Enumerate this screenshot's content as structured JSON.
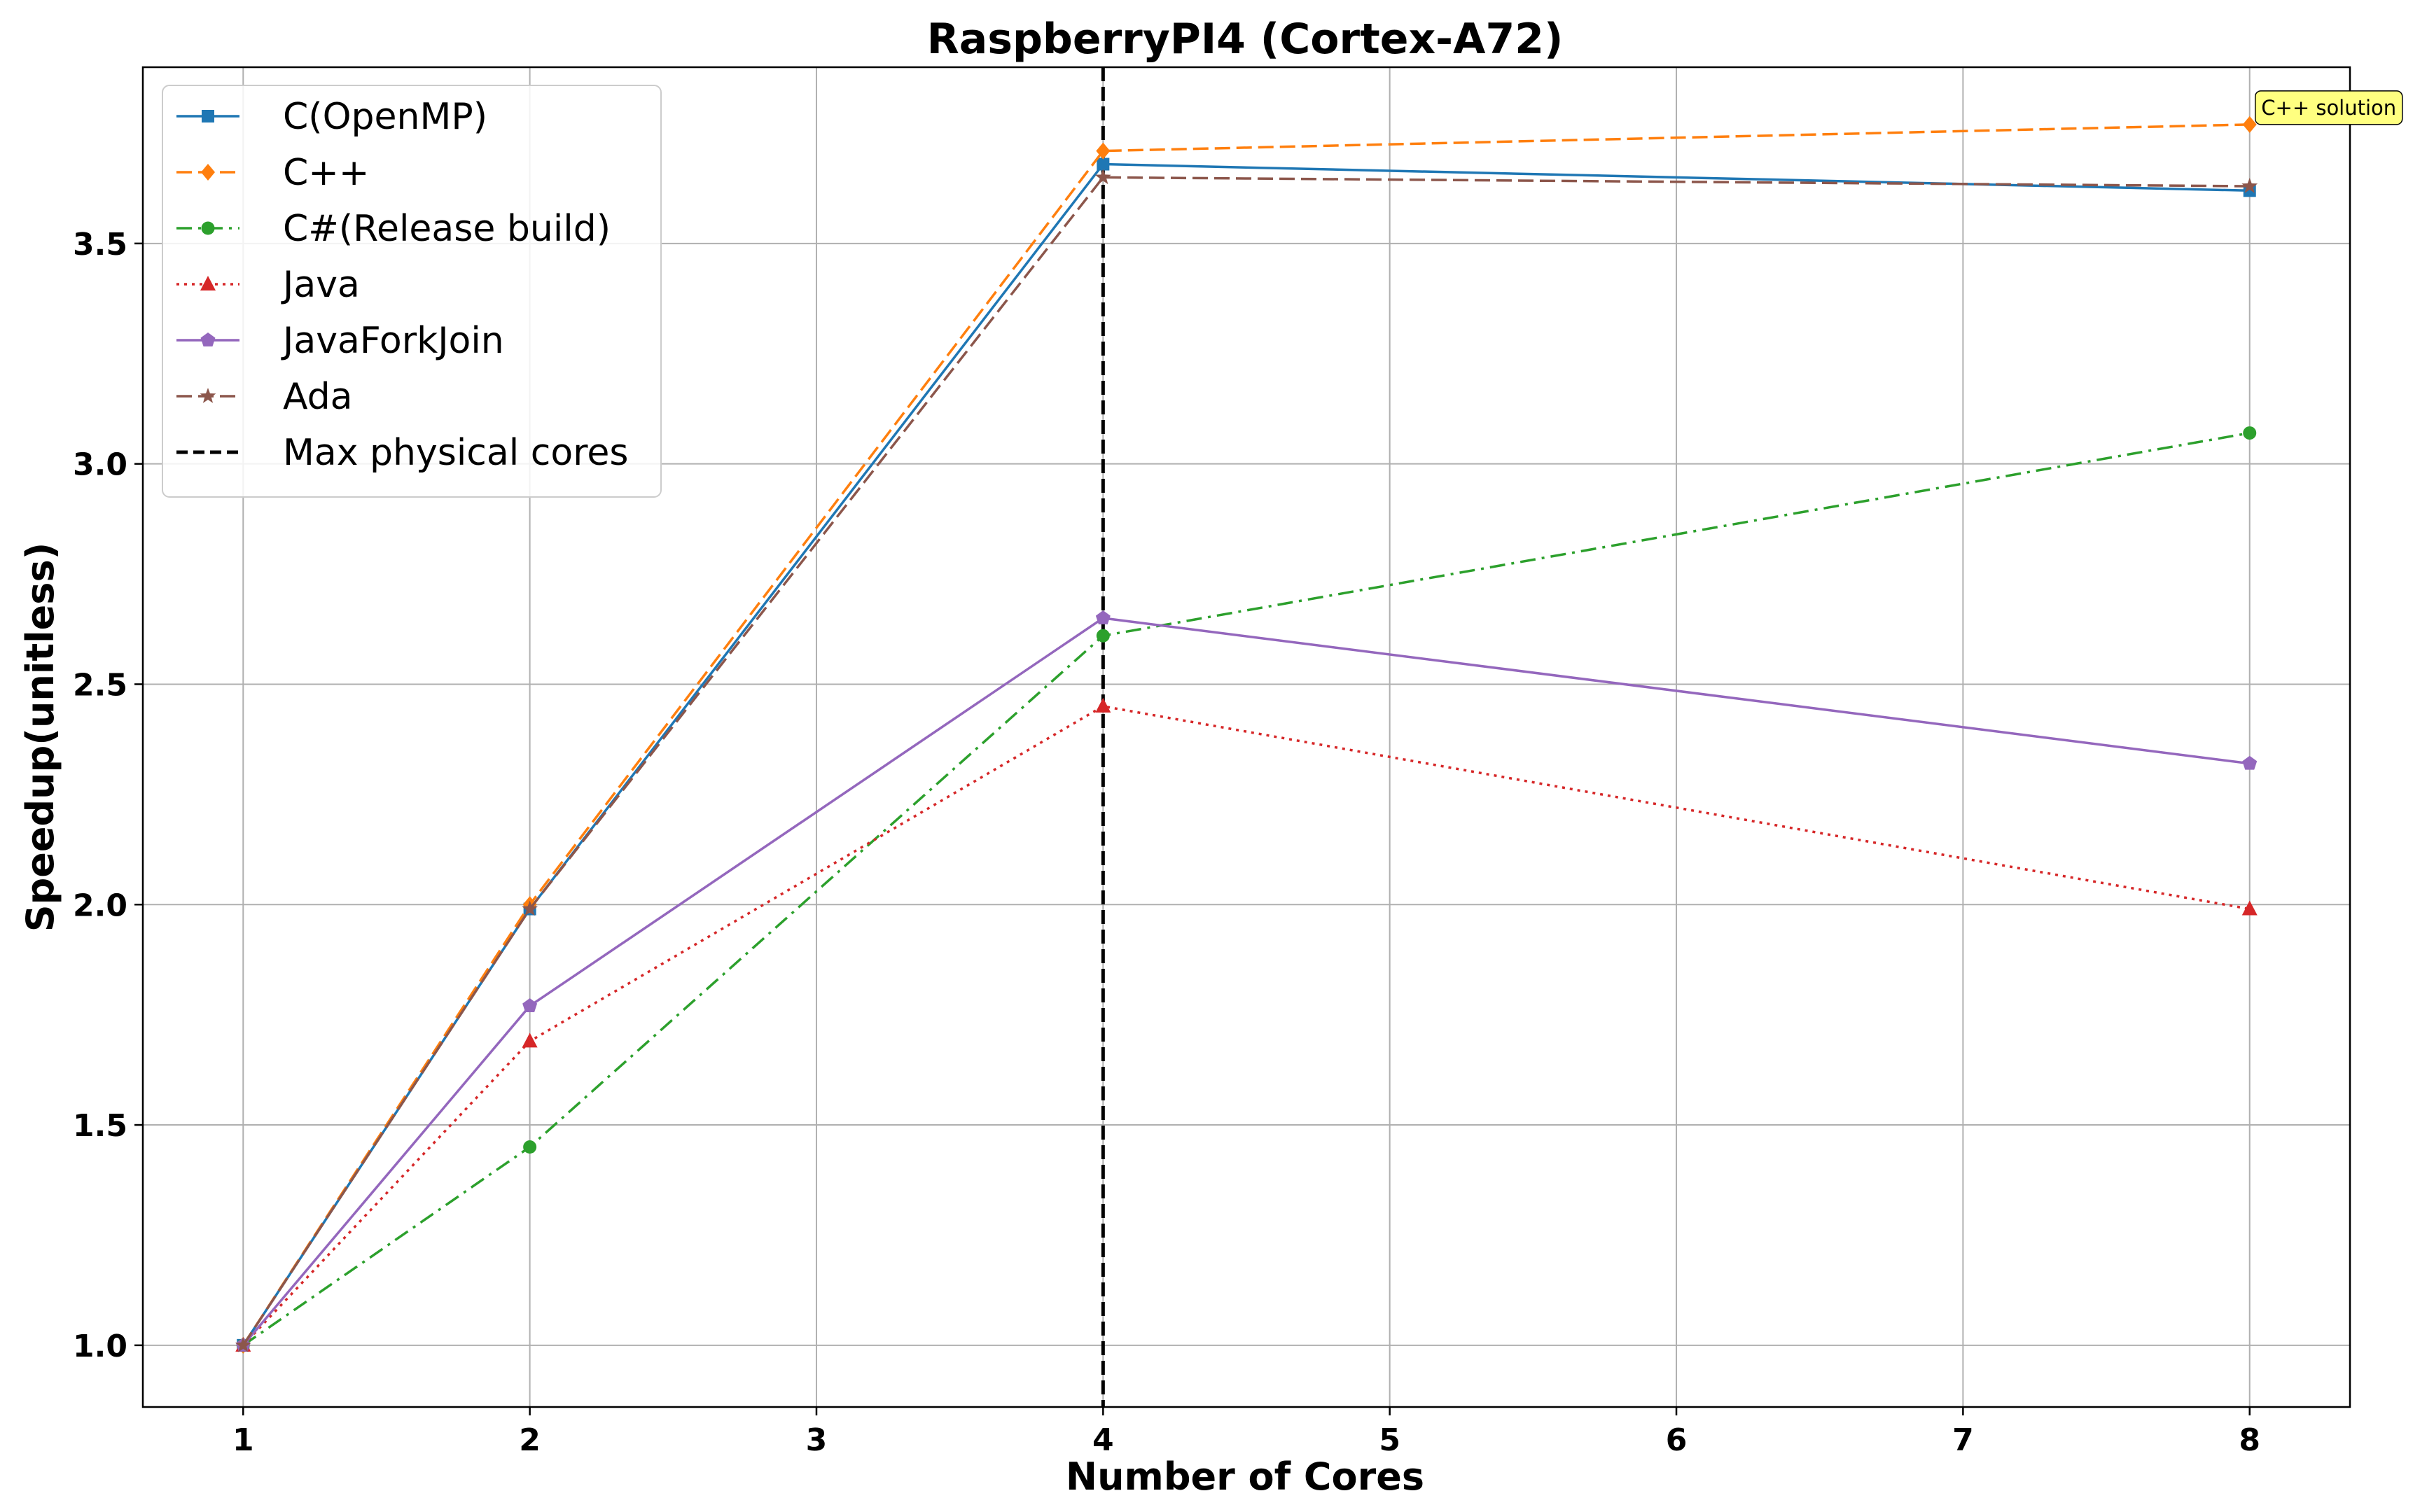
{
  "chart_data": {
    "type": "line",
    "title": "RaspberryPI4 (Cortex-A72)",
    "xlabel": "Number of Cores",
    "ylabel": "Speedup(unitless)",
    "x": [
      1,
      2,
      4,
      8
    ],
    "xticks": [
      1,
      2,
      3,
      4,
      5,
      6,
      7,
      8
    ],
    "xtick_labels": [
      "1",
      "2",
      "3",
      "4",
      "5",
      "6",
      "7",
      "8"
    ],
    "yticks": [
      1.0,
      1.5,
      2.0,
      2.5,
      3.0,
      3.5
    ],
    "ytick_labels": [
      "1.0",
      "1.5",
      "2.0",
      "2.5",
      "3.0",
      "3.5"
    ],
    "xlim": [
      0.65,
      8.35
    ],
    "ylim": [
      0.86,
      3.9
    ],
    "grid": true,
    "legend_position": "top-left",
    "series": [
      {
        "name": "C(OpenMP)",
        "values": [
          1.0,
          1.99,
          3.68,
          3.62
        ],
        "color": "#1f77b4",
        "dash": "solid",
        "marker": "square"
      },
      {
        "name": "C++",
        "values": [
          1.0,
          2.0,
          3.71,
          3.77
        ],
        "color": "#ff7f0e",
        "dash": "dashed",
        "marker": "diamond"
      },
      {
        "name": "C#(Release build)",
        "values": [
          1.0,
          1.45,
          2.61,
          3.07
        ],
        "color": "#2ca02c",
        "dash": "dashdot",
        "marker": "circle"
      },
      {
        "name": "Java",
        "values": [
          1.0,
          1.69,
          2.45,
          1.99
        ],
        "color": "#d62728",
        "dash": "dotted",
        "marker": "triangle"
      },
      {
        "name": "JavaForkJoin",
        "values": [
          1.0,
          1.77,
          2.65,
          2.32
        ],
        "color": "#9467bd",
        "dash": "solid",
        "marker": "pentagon"
      },
      {
        "name": "Ada",
        "values": [
          1.0,
          1.99,
          3.65,
          3.63
        ],
        "color": "#8c564b",
        "dash": "dashed",
        "marker": "star"
      }
    ],
    "reference_line": {
      "name": "Max physical cores",
      "x": 4,
      "color": "#000000",
      "dash": "dashed"
    },
    "annotations": [
      {
        "text": "C++ solution",
        "x": 8,
        "y": 3.77,
        "background": "#ffff80"
      }
    ]
  }
}
